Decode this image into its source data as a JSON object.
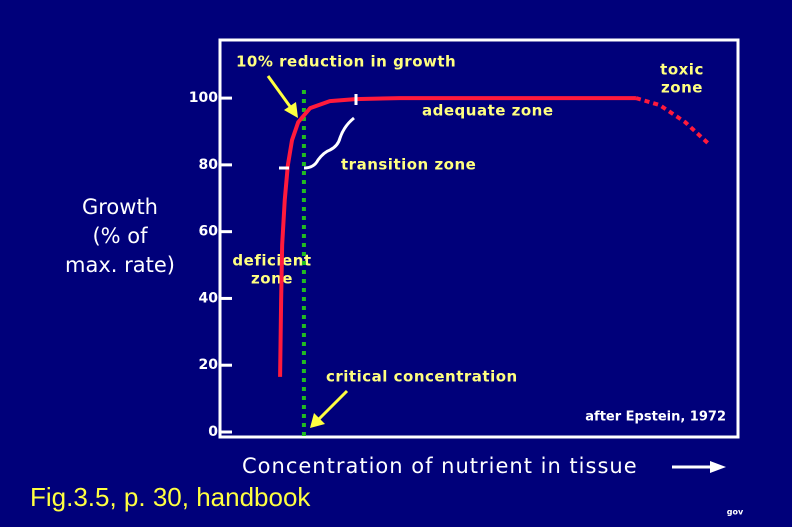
{
  "chart_data": {
    "type": "line",
    "y_label": [
      "Growth",
      "(% of",
      "max. rate)"
    ],
    "x_label": "Concentration of nutrient in tissue",
    "caption": "Fig.3.5, p. 30, handbook",
    "corner_note": "gov",
    "source": "after Epstein, 1972",
    "annotations": {
      "reduction": "10% reduction in growth",
      "toxic": [
        "toxic",
        "zone"
      ],
      "adequate": "adequate zone",
      "transition": "transition zone",
      "deficient": [
        "deficient",
        "zone"
      ],
      "critical": "critical concentration"
    },
    "xlim": [
      0,
      100
    ],
    "ylim": [
      -1.5,
      117.4
    ],
    "yticks": [
      0,
      20,
      40,
      60,
      80,
      100
    ],
    "critical_x": 16.2,
    "series": [
      {
        "color": "#ff1a3c",
        "style": "solid",
        "x": [
          11.6,
          11.8,
          12.0,
          12.5,
          13.1,
          13.9,
          15.1,
          17.4,
          21.2,
          26.1,
          34.7,
          54.1,
          80.3
        ],
        "values": [
          16.5,
          39.5,
          56.0,
          69.5,
          79.9,
          87.4,
          92.8,
          97.0,
          99.1,
          99.7,
          100,
          100,
          100
        ]
      },
      {
        "color": "#ff1a3c",
        "style": "dotted",
        "x": [
          80.3,
          84.9,
          89.8,
          94.2
        ],
        "values": [
          100,
          97.9,
          92.8,
          86.5
        ]
      }
    ]
  }
}
